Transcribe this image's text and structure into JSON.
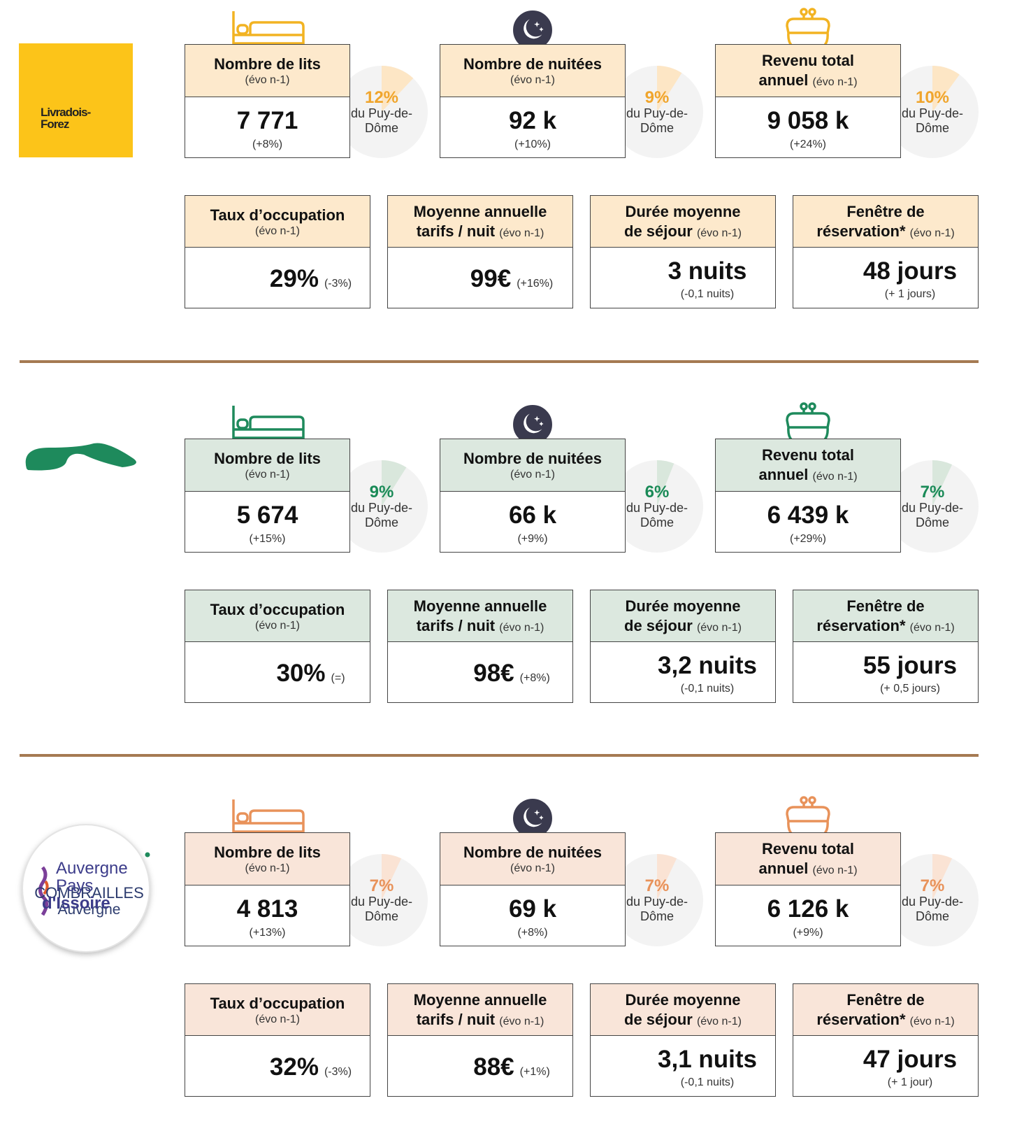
{
  "sections": [
    {
      "logo": [
        "Livradois-",
        "Forez"
      ],
      "colors": {
        "header": "#fde9cc",
        "accent": "#f2b322",
        "wedge": "#fde6c5",
        "pct": "#f0a52c"
      },
      "top": [
        {
          "title": "Nombre de lits",
          "subtitle": "(évo n-1)",
          "value": "7 771",
          "evo": "(+8%)",
          "share": {
            "value": 12,
            "label": "12%"
          },
          "caption": "du Puy-de-Dôme"
        },
        {
          "title": "Nombre de nuitées",
          "subtitle": "(évo n-1)",
          "value": "92 k",
          "evo": "(+10%)",
          "share": {
            "value": 9,
            "label": "9%"
          },
          "caption": "du Puy-de-Dôme"
        },
        {
          "title": [
            "Revenu total",
            "annuel"
          ],
          "subtitle": "(évo n-1)",
          "value": "9 058 k",
          "evo": "(+24%)",
          "share": {
            "value": 10,
            "label": "10%"
          },
          "caption": "du Puy-de-Dôme"
        }
      ],
      "bottom": [
        {
          "title": "Taux d’occupation",
          "subtitle": "(évo n-1)",
          "value": "29%",
          "evo": "(-3%)"
        },
        {
          "title": [
            "Moyenne annuelle",
            "tarifs / nuit"
          ],
          "subtitle": "(évo n-1)",
          "value": "99€",
          "evo": "(+16%)"
        },
        {
          "title": [
            "Durée moyenne",
            "de séjour"
          ],
          "subtitle": "(évo n-1)",
          "value": "3 nuits",
          "evo": "(-0,1 nuits)"
        },
        {
          "title": [
            "Fenêtre de",
            "réservation*"
          ],
          "subtitle": "(évo n-1)",
          "value": "48 jours",
          "evo": "(+ 1 jours)"
        }
      ]
    },
    {
      "logo": [
        "COMBRAILLES",
        "Auvergne"
      ],
      "colors": {
        "header": "#dce8df",
        "accent": "#1e8a5c",
        "wedge": "#d9e7dc",
        "pct": "#1a8a57"
      },
      "top": [
        {
          "title": "Nombre de lits",
          "subtitle": "(évo n-1)",
          "value": "5 674",
          "evo": "(+15%)",
          "share": {
            "value": 9,
            "label": "9%"
          },
          "caption": "du Puy-de-Dôme"
        },
        {
          "title": "Nombre de nuitées",
          "subtitle": "(évo n-1)",
          "value": "66 k",
          "evo": "(+9%)",
          "share": {
            "value": 6,
            "label": "6%"
          },
          "caption": "du Puy-de-Dôme"
        },
        {
          "title": [
            "Revenu total",
            "annuel"
          ],
          "subtitle": "(évo n-1)",
          "value": "6 439 k",
          "evo": "(+29%)",
          "share": {
            "value": 7,
            "label": "7%"
          },
          "caption": "du Puy-de-Dôme"
        }
      ],
      "bottom": [
        {
          "title": "Taux d’occupation",
          "subtitle": "(évo n-1)",
          "value": "30%",
          "evo": "(=)"
        },
        {
          "title": [
            "Moyenne annuelle",
            "tarifs / nuit"
          ],
          "subtitle": "(évo n-1)",
          "value": "98€",
          "evo": "(+8%)"
        },
        {
          "title": [
            "Durée moyenne",
            "de séjour"
          ],
          "subtitle": "(évo n-1)",
          "value": "3,2 nuits",
          "evo": "(-0,1 nuits)"
        },
        {
          "title": [
            "Fenêtre de",
            "réservation*"
          ],
          "subtitle": "(évo n-1)",
          "value": "55 jours",
          "evo": "(+ 0,5 jours)"
        }
      ]
    },
    {
      "logo": [
        "Auvergne",
        "Pays",
        "d'Issoire"
      ],
      "colors": {
        "header": "#f9e5d9",
        "accent": "#e8925a",
        "wedge": "#fae3d4",
        "pct": "#e8925a"
      },
      "top": [
        {
          "title": "Nombre de lits",
          "subtitle": "(évo n-1)",
          "value": "4 813",
          "evo": "(+13%)",
          "share": {
            "value": 7,
            "label": "7%"
          },
          "caption": "du Puy-de-Dôme"
        },
        {
          "title": "Nombre de nuitées",
          "subtitle": "(évo n-1)",
          "value": "69 k",
          "evo": "(+8%)",
          "share": {
            "value": 7,
            "label": "7%"
          },
          "caption": "du Puy-de-Dôme"
        },
        {
          "title": [
            "Revenu total",
            "annuel"
          ],
          "subtitle": "(évo n-1)",
          "value": "6 126 k",
          "evo": "(+9%)",
          "share": {
            "value": 7,
            "label": "7%"
          },
          "caption": "du Puy-de-Dôme"
        }
      ],
      "bottom": [
        {
          "title": "Taux d’occupation",
          "subtitle": "(évo n-1)",
          "value": "32%",
          "evo": "(-3%)"
        },
        {
          "title": [
            "Moyenne annuelle",
            "tarifs / nuit"
          ],
          "subtitle": "(évo n-1)",
          "value": "88€",
          "evo": "(+1%)"
        },
        {
          "title": [
            "Durée moyenne",
            "de séjour"
          ],
          "subtitle": "(évo n-1)",
          "value": "3,1 nuits",
          "evo": "(-0,1 nuits)"
        },
        {
          "title": [
            "Fenêtre de",
            "réservation*"
          ],
          "subtitle": "(évo n-1)",
          "value": "47 jours",
          "evo": "(+ 1 jour)"
        }
      ]
    }
  ]
}
